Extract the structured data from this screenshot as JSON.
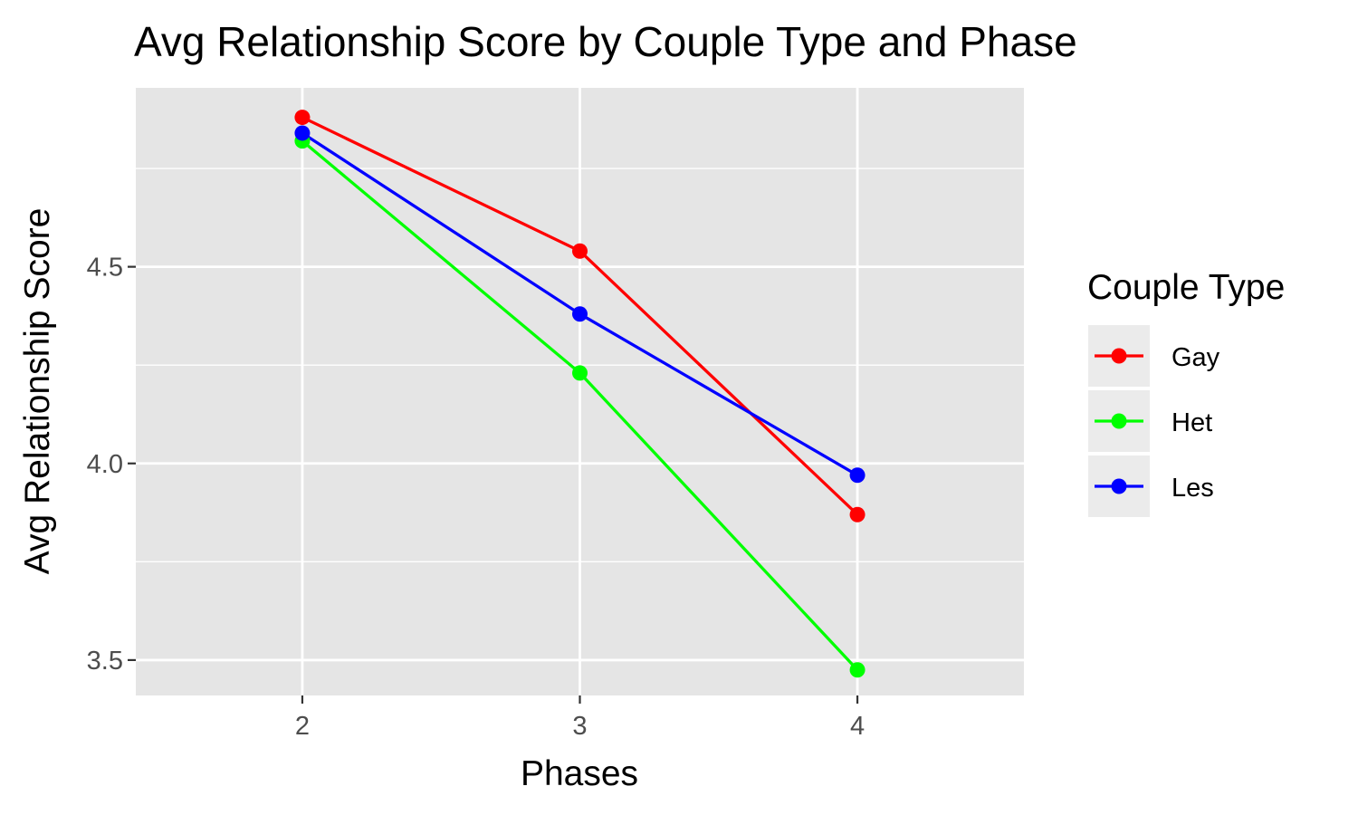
{
  "chart_data": {
    "type": "line",
    "title": "Avg Relationship Score by Couple Type and Phase",
    "xlabel": "Phases",
    "ylabel": "Avg Relationship Score",
    "x": [
      2,
      3,
      4
    ],
    "xlim": [
      1.4,
      4.6
    ],
    "ylim": [
      3.41,
      4.955
    ],
    "x_ticks": [
      "2",
      "3",
      "4"
    ],
    "y_ticks": [
      "3.5",
      "4.0",
      "4.5"
    ],
    "grid": true,
    "legend": {
      "title": "Couple Type",
      "placement": "right"
    },
    "series": [
      {
        "name": "Gay",
        "color": "#ff0000",
        "values": [
          4.88,
          4.54,
          3.87
        ]
      },
      {
        "name": "Het",
        "color": "#00ff00",
        "values": [
          4.82,
          4.23,
          3.475
        ]
      },
      {
        "name": "Les",
        "color": "#0000ff",
        "values": [
          4.84,
          4.38,
          3.97
        ]
      }
    ]
  }
}
